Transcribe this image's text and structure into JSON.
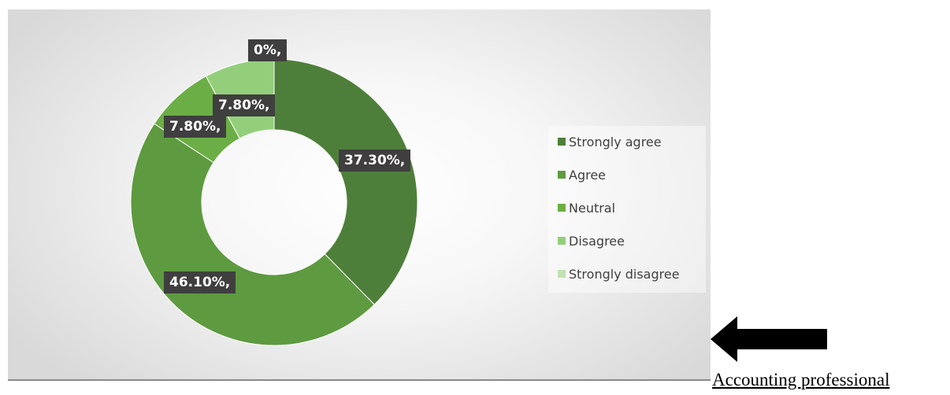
{
  "chart_data": {
    "type": "pie",
    "variant": "donut",
    "title": "",
    "categories": [
      "Strongly agree",
      "Agree",
      "Neutral",
      "Disagree",
      "Strongly disagree"
    ],
    "values": [
      37.3,
      46.1,
      7.8,
      7.8,
      0
    ],
    "data_labels": [
      "37.30%,",
      "46.10%,",
      "7.80%,",
      "7.80%,",
      "0%,"
    ],
    "colors": [
      "#4e7f3a",
      "#5e9a40",
      "#6bae45",
      "#93cf7b",
      "#c2e2b2"
    ],
    "legend_position": "right"
  },
  "legend": {
    "items": [
      {
        "label": "Strongly agree",
        "color": "#4e7f3a"
      },
      {
        "label": "Agree",
        "color": "#5e9a40"
      },
      {
        "label": "Neutral",
        "color": "#6bae45"
      },
      {
        "label": "Disagree",
        "color": "#93cf7b"
      },
      {
        "label": "Strongly disagree",
        "color": "#c2e2b2"
      }
    ]
  },
  "caption": "Accounting professional",
  "arrow_icon": "left-arrow-icon"
}
